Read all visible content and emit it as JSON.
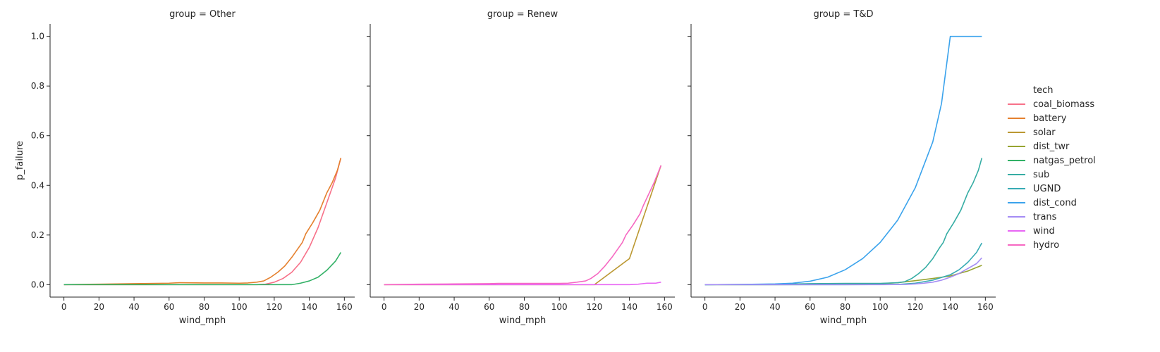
{
  "chart_data": {
    "type": "line",
    "xlabel": "wind_mph",
    "ylabel": "p_failure",
    "xlim": [
      -7.9,
      165.9
    ],
    "ylim": [
      -0.05,
      1.05
    ],
    "xticks": [
      0,
      20,
      40,
      60,
      80,
      100,
      120,
      140,
      160
    ],
    "yticks": [
      0.0,
      0.2,
      0.4,
      0.6,
      0.8,
      1.0
    ],
    "grid": false,
    "legend_title": "tech",
    "legend_position": "right",
    "legend": [
      {
        "name": "coal_biomass",
        "color": "#f77189"
      },
      {
        "name": "battery",
        "color": "#e5802e"
      },
      {
        "name": "solar",
        "color": "#bb9832"
      },
      {
        "name": "dist_twr",
        "color": "#97a431"
      },
      {
        "name": "natgas_petrol",
        "color": "#32b166"
      },
      {
        "name": "sub",
        "color": "#36ada4"
      },
      {
        "name": "UGND",
        "color": "#37abb4"
      },
      {
        "name": "dist_cond",
        "color": "#3ba3ec"
      },
      {
        "name": "trans",
        "color": "#a48cf4"
      },
      {
        "name": "wind",
        "color": "#e866f4"
      },
      {
        "name": "hydro",
        "color": "#f668c2"
      }
    ],
    "panels": [
      {
        "title": "group = Other",
        "series": [
          {
            "name": "coal_biomass",
            "color": "#f77189",
            "x": [
              0,
              20,
              40,
              60,
              80,
              100,
              110,
              115,
              120,
              125,
              130,
              135,
              140,
              145,
              150,
              155,
              158
            ],
            "y": [
              0,
              0,
              0,
              0,
              0,
              0,
              0,
              0.002,
              0.01,
              0.025,
              0.05,
              0.09,
              0.15,
              0.23,
              0.33,
              0.43,
              0.51
            ]
          },
          {
            "name": "battery",
            "color": "#e5802e",
            "x": [
              0,
              20,
              40,
              60,
              66,
              80,
              90,
              100,
              105,
              110,
              114,
              118,
              122,
              126,
              130,
              134,
              136,
              138,
              142,
              146,
              150,
              153,
              156,
              158
            ],
            "y": [
              0,
              0.002,
              0.004,
              0.006,
              0.008,
              0.007,
              0.007,
              0.006,
              0.007,
              0.01,
              0.015,
              0.03,
              0.05,
              0.075,
              0.11,
              0.15,
              0.17,
              0.205,
              0.25,
              0.3,
              0.37,
              0.41,
              0.46,
              0.51
            ]
          },
          {
            "name": "natgas_petrol",
            "color": "#32b166",
            "x": [
              0,
              40,
              80,
              110,
              130,
              135,
              140,
              145,
              150,
              155,
              158
            ],
            "y": [
              0,
              0,
              0,
              0,
              0,
              0.006,
              0.015,
              0.03,
              0.058,
              0.095,
              0.13
            ]
          }
        ]
      },
      {
        "title": "group = Renew",
        "series": [
          {
            "name": "solar",
            "color": "#bb9832",
            "x": [
              0,
              40,
              80,
              120,
              140,
              158
            ],
            "y": [
              0,
              0,
              0,
              0,
              0.105,
              0.48
            ]
          },
          {
            "name": "wind",
            "color": "#e866f4",
            "x": [
              0,
              40,
              80,
              120,
              140,
              145,
              150,
              155,
              158
            ],
            "y": [
              0,
              0,
              0,
              0,
              0,
              0.002,
              0.006,
              0.006,
              0.01
            ]
          },
          {
            "name": "hydro",
            "color": "#f668c2",
            "x": [
              0,
              20,
              40,
              60,
              65,
              80,
              100,
              105,
              110,
              115,
              118,
              122,
              126,
              130,
              134,
              136,
              138,
              140,
              142,
              146,
              148,
              150,
              154,
              158
            ],
            "y": [
              0,
              0.002,
              0.003,
              0.004,
              0.005,
              0.005,
              0.005,
              0.006,
              0.01,
              0.015,
              0.025,
              0.045,
              0.075,
              0.11,
              0.15,
              0.17,
              0.2,
              0.22,
              0.24,
              0.285,
              0.32,
              0.35,
              0.41,
              0.48
            ]
          }
        ]
      },
      {
        "title": "group = T&D",
        "series": [
          {
            "name": "dist_twr",
            "color": "#97a431",
            "x": [
              0,
              40,
              80,
              100,
              110,
              120,
              130,
              140,
              150,
              158
            ],
            "y": [
              0,
              0,
              0.001,
              0.004,
              0.008,
              0.016,
              0.025,
              0.035,
              0.055,
              0.078
            ]
          },
          {
            "name": "sub",
            "color": "#36ada4",
            "x": [
              0,
              40,
              60,
              80,
              100,
              110,
              114,
              118,
              122,
              126,
              130,
              134,
              136,
              138,
              142,
              146,
              150,
              153,
              156,
              158
            ],
            "y": [
              0,
              0.002,
              0.004,
              0.005,
              0.005,
              0.008,
              0.012,
              0.025,
              0.045,
              0.07,
              0.105,
              0.15,
              0.17,
              0.205,
              0.25,
              0.3,
              0.37,
              0.41,
              0.46,
              0.51
            ]
          },
          {
            "name": "UGND",
            "color": "#37abb4",
            "x": [
              0,
              40,
              80,
              110,
              120,
              130,
              140,
              145,
              150,
              155,
              158
            ],
            "y": [
              0,
              0,
              0,
              0.001,
              0.006,
              0.018,
              0.04,
              0.06,
              0.09,
              0.13,
              0.168
            ]
          },
          {
            "name": "dist_cond",
            "color": "#3ba3ec",
            "x": [
              0,
              20,
              40,
              50,
              60,
              70,
              80,
              90,
              100,
              110,
              120,
              130,
              135,
              140,
              145,
              150,
              158
            ],
            "y": [
              0,
              0.001,
              0.003,
              0.006,
              0.014,
              0.03,
              0.06,
              0.105,
              0.17,
              0.26,
              0.39,
              0.575,
              0.73,
              1.0,
              1.0,
              1.0,
              1.0
            ]
          },
          {
            "name": "trans",
            "color": "#a48cf4",
            "x": [
              0,
              40,
              80,
              100,
              115,
              120,
              125,
              130,
              135,
              140,
              145,
              150,
              155,
              158
            ],
            "y": [
              0,
              0,
              0,
              0,
              0.001,
              0.003,
              0.006,
              0.01,
              0.018,
              0.03,
              0.045,
              0.065,
              0.085,
              0.108
            ]
          }
        ]
      }
    ]
  }
}
